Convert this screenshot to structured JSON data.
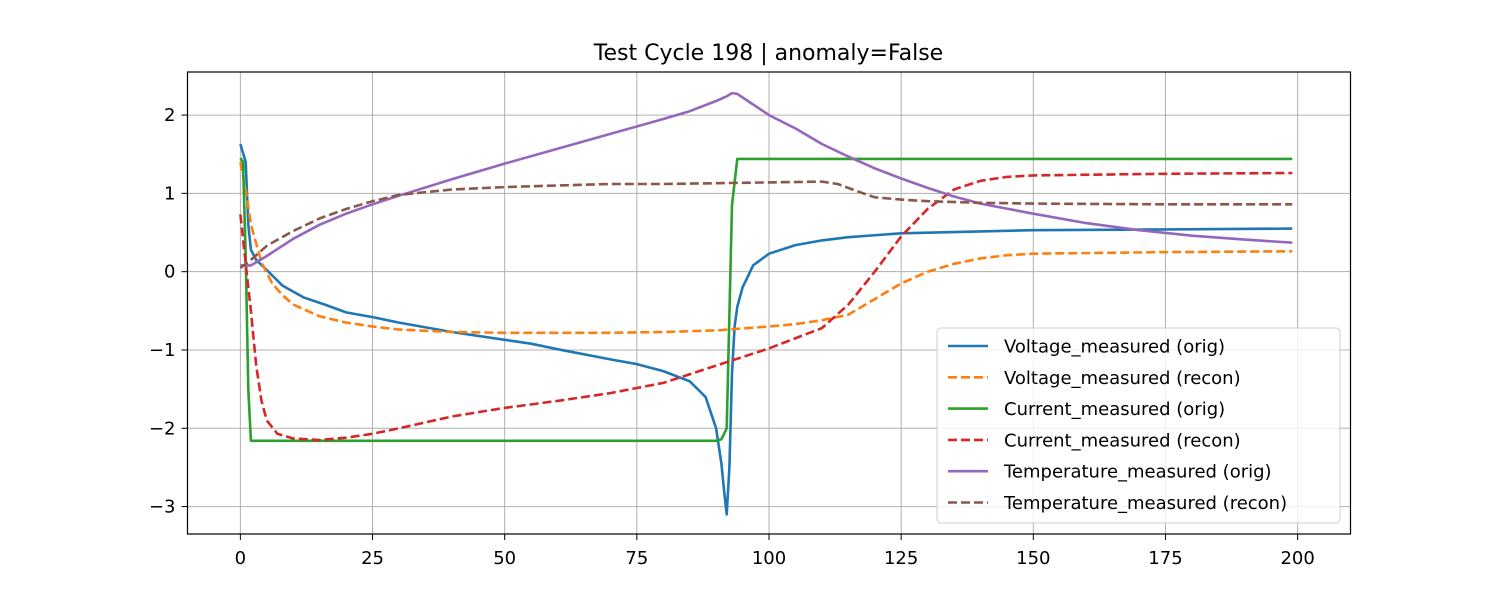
{
  "chart_data": {
    "type": "line",
    "title": "Test Cycle 198 | anomaly=False",
    "xlabel": "",
    "ylabel": "",
    "xlim": [
      -10,
      210
    ],
    "ylim": [
      -3.35,
      2.55
    ],
    "grid": true,
    "legend_placement": "lower right",
    "x_ticks": [
      0,
      25,
      50,
      75,
      100,
      125,
      150,
      175,
      200
    ],
    "x_tick_labels": [
      "0",
      "25",
      "50",
      "75",
      "100",
      "125",
      "150",
      "175",
      "200"
    ],
    "y_ticks": [
      2,
      1,
      0,
      -1,
      -2,
      -3
    ],
    "y_tick_labels": [
      "2",
      "1",
      "0",
      "−1",
      "−2",
      "−3"
    ],
    "series": [
      {
        "name": "Voltage_measured (orig)",
        "color": "#1f77b4",
        "dash": "solid",
        "points": [
          [
            0,
            1.63
          ],
          [
            1,
            1.4
          ],
          [
            1.5,
            0.6
          ],
          [
            2,
            0.28
          ],
          [
            3,
            0.15
          ],
          [
            5,
            0.02
          ],
          [
            8,
            -0.18
          ],
          [
            12,
            -0.33
          ],
          [
            16,
            -0.42
          ],
          [
            20,
            -0.52
          ],
          [
            25,
            -0.58
          ],
          [
            30,
            -0.65
          ],
          [
            40,
            -0.77
          ],
          [
            50,
            -0.87
          ],
          [
            55,
            -0.92
          ],
          [
            60,
            -0.99
          ],
          [
            70,
            -1.12
          ],
          [
            75,
            -1.18
          ],
          [
            80,
            -1.27
          ],
          [
            85,
            -1.4
          ],
          [
            88,
            -1.6
          ],
          [
            90,
            -2.0
          ],
          [
            91,
            -2.45
          ],
          [
            91.5,
            -2.8
          ],
          [
            92,
            -3.1
          ],
          [
            92.5,
            -2.5
          ],
          [
            93,
            -1.3
          ],
          [
            93.5,
            -0.7
          ],
          [
            94,
            -0.45
          ],
          [
            95,
            -0.2
          ],
          [
            96,
            -0.06
          ],
          [
            97,
            0.08
          ],
          [
            100,
            0.23
          ],
          [
            105,
            0.34
          ],
          [
            110,
            0.4
          ],
          [
            115,
            0.44
          ],
          [
            125,
            0.49
          ],
          [
            150,
            0.53
          ],
          [
            175,
            0.54
          ],
          [
            199,
            0.55
          ]
        ]
      },
      {
        "name": "Voltage_measured (recon)",
        "color": "#ff7f0e",
        "dash": "dashed",
        "points": [
          [
            0,
            1.4
          ],
          [
            1,
            1.05
          ],
          [
            2,
            0.6
          ],
          [
            4,
            0.12
          ],
          [
            6,
            -0.15
          ],
          [
            8,
            -0.3
          ],
          [
            10,
            -0.42
          ],
          [
            15,
            -0.57
          ],
          [
            20,
            -0.65
          ],
          [
            25,
            -0.7
          ],
          [
            30,
            -0.74
          ],
          [
            40,
            -0.77
          ],
          [
            50,
            -0.78
          ],
          [
            60,
            -0.78
          ],
          [
            70,
            -0.78
          ],
          [
            80,
            -0.77
          ],
          [
            90,
            -0.75
          ],
          [
            100,
            -0.7
          ],
          [
            105,
            -0.67
          ],
          [
            110,
            -0.62
          ],
          [
            115,
            -0.55
          ],
          [
            120,
            -0.35
          ],
          [
            125,
            -0.15
          ],
          [
            130,
            0.0
          ],
          [
            135,
            0.1
          ],
          [
            140,
            0.17
          ],
          [
            145,
            0.21
          ],
          [
            150,
            0.23
          ],
          [
            175,
            0.25
          ],
          [
            199,
            0.26
          ]
        ]
      },
      {
        "name": "Current_measured (orig)",
        "color": "#2ca02c",
        "dash": "solid",
        "points": [
          [
            0,
            1.45
          ],
          [
            0.5,
            1.4
          ],
          [
            1,
            0.2
          ],
          [
            1.5,
            -1.5
          ],
          [
            2,
            -2.16
          ],
          [
            25,
            -2.16
          ],
          [
            50,
            -2.16
          ],
          [
            75,
            -2.16
          ],
          [
            90,
            -2.16
          ],
          [
            91,
            -2.14
          ],
          [
            92,
            -2.0
          ],
          [
            93,
            0.85
          ],
          [
            94,
            1.44
          ],
          [
            125,
            1.44
          ],
          [
            150,
            1.44
          ],
          [
            175,
            1.44
          ],
          [
            199,
            1.44
          ]
        ]
      },
      {
        "name": "Current_measured (recon)",
        "color": "#d62728",
        "dash": "dashed",
        "points": [
          [
            0,
            0.73
          ],
          [
            1,
            0.1
          ],
          [
            2,
            -0.5
          ],
          [
            3,
            -1.2
          ],
          [
            4,
            -1.65
          ],
          [
            5,
            -1.9
          ],
          [
            7,
            -2.07
          ],
          [
            10,
            -2.13
          ],
          [
            15,
            -2.15
          ],
          [
            20,
            -2.12
          ],
          [
            25,
            -2.07
          ],
          [
            30,
            -2.0
          ],
          [
            40,
            -1.85
          ],
          [
            50,
            -1.74
          ],
          [
            60,
            -1.65
          ],
          [
            70,
            -1.55
          ],
          [
            80,
            -1.42
          ],
          [
            90,
            -1.2
          ],
          [
            100,
            -0.98
          ],
          [
            110,
            -0.72
          ],
          [
            115,
            -0.42
          ],
          [
            120,
            0.0
          ],
          [
            125,
            0.45
          ],
          [
            130,
            0.8
          ],
          [
            135,
            1.05
          ],
          [
            140,
            1.16
          ],
          [
            145,
            1.21
          ],
          [
            150,
            1.23
          ],
          [
            175,
            1.25
          ],
          [
            199,
            1.26
          ]
        ]
      },
      {
        "name": "Temperature_measured (orig)",
        "color": "#9467bd",
        "dash": "solid",
        "points": [
          [
            0,
            0.08
          ],
          [
            2,
            0.08
          ],
          [
            5,
            0.2
          ],
          [
            10,
            0.42
          ],
          [
            15,
            0.6
          ],
          [
            20,
            0.74
          ],
          [
            25,
            0.86
          ],
          [
            30,
            0.97
          ],
          [
            40,
            1.18
          ],
          [
            50,
            1.38
          ],
          [
            60,
            1.57
          ],
          [
            70,
            1.76
          ],
          [
            80,
            1.95
          ],
          [
            85,
            2.05
          ],
          [
            90,
            2.18
          ],
          [
            92,
            2.24
          ],
          [
            93,
            2.28
          ],
          [
            94,
            2.27
          ],
          [
            96,
            2.18
          ],
          [
            100,
            2.0
          ],
          [
            105,
            1.83
          ],
          [
            110,
            1.63
          ],
          [
            115,
            1.47
          ],
          [
            120,
            1.32
          ],
          [
            125,
            1.19
          ],
          [
            130,
            1.07
          ],
          [
            135,
            0.96
          ],
          [
            140,
            0.87
          ],
          [
            150,
            0.74
          ],
          [
            160,
            0.62
          ],
          [
            170,
            0.53
          ],
          [
            180,
            0.46
          ],
          [
            190,
            0.41
          ],
          [
            199,
            0.37
          ]
        ]
      },
      {
        "name": "Temperature_measured (recon)",
        "color": "#8c564b",
        "dash": "dashed",
        "points": [
          [
            0,
            0.05
          ],
          [
            2,
            0.15
          ],
          [
            5,
            0.33
          ],
          [
            10,
            0.52
          ],
          [
            15,
            0.68
          ],
          [
            20,
            0.8
          ],
          [
            25,
            0.9
          ],
          [
            30,
            0.98
          ],
          [
            40,
            1.05
          ],
          [
            50,
            1.08
          ],
          [
            60,
            1.1
          ],
          [
            70,
            1.12
          ],
          [
            80,
            1.12
          ],
          [
            90,
            1.13
          ],
          [
            100,
            1.14
          ],
          [
            110,
            1.15
          ],
          [
            113,
            1.12
          ],
          [
            117,
            1.02
          ],
          [
            120,
            0.95
          ],
          [
            125,
            0.92
          ],
          [
            130,
            0.9
          ],
          [
            140,
            0.88
          ],
          [
            150,
            0.87
          ],
          [
            175,
            0.86
          ],
          [
            199,
            0.86
          ]
        ]
      }
    ]
  }
}
